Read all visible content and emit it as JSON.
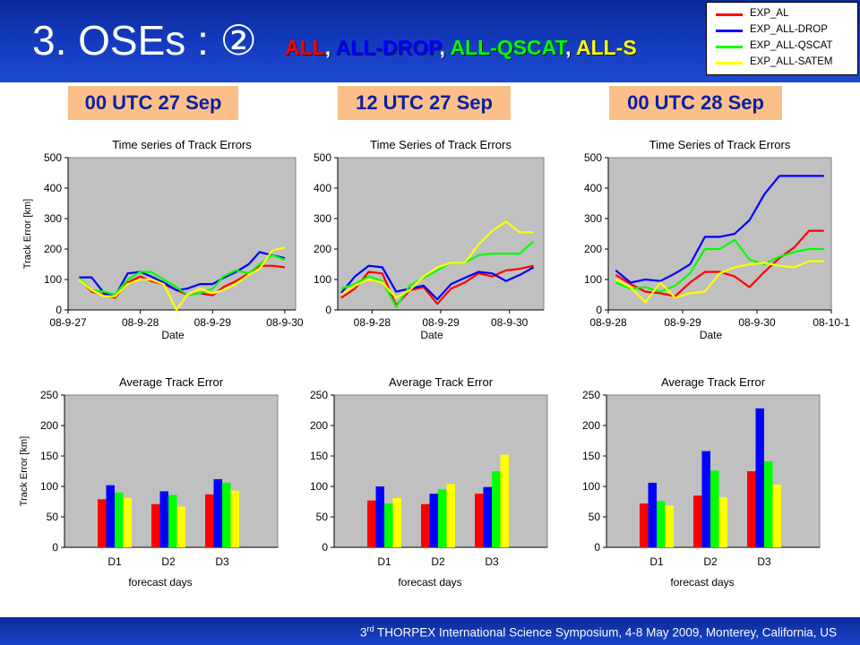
{
  "header": {
    "title_prefix": "3. OSEs : ② ",
    "experiments": [
      {
        "label": "ALL",
        "color": "#ff0000"
      },
      {
        "label": "ALL-DROP",
        "color": "#0000ff"
      },
      {
        "label": "ALL-QSCAT",
        "color": "#00ff00"
      },
      {
        "label": "ALL-S",
        "color": "#ffff00"
      }
    ]
  },
  "legend": [
    {
      "name": "EXP_AL",
      "color": "#ff0000"
    },
    {
      "name": "EXP_ALL-DROP",
      "color": "#0000ff"
    },
    {
      "name": "EXP_ALL-QSCAT",
      "color": "#00ff00"
    },
    {
      "name": "EXP_ALL-SATEM",
      "color": "#ffff00"
    }
  ],
  "time_labels": [
    "00 UTC 27 Sep",
    "12 UTC 27 Sep",
    "00 UTC 28 Sep"
  ],
  "footer": {
    "ordinal_num": "3",
    "ordinal_sup": "rd",
    "text": " THORPEX International Science Symposium, 4-8 May 2009, Monterey, California, US"
  },
  "chart_data": [
    {
      "type": "line",
      "title": "Time series of Track Errors",
      "xlabel": "Date",
      "ylabel": "Track Error [km]",
      "x_tick_labels": [
        "08-9-27",
        "08-9-28",
        "08-9-29",
        "08-9-30"
      ],
      "x_tick_positions": [
        0,
        4,
        8,
        12
      ],
      "xlim": [
        0,
        12.6
      ],
      "ylim": [
        0,
        500
      ],
      "yticks": [
        0,
        100,
        200,
        300,
        400,
        500
      ],
      "grid": false,
      "series": [
        {
          "name": "EXP_AL",
          "color": "#ff0000",
          "x": [
            0.6,
            1.3,
            2,
            2.6,
            3.3,
            4,
            4.6,
            5.3,
            6,
            6.6,
            7.3,
            8,
            8.6,
            9.3,
            10,
            10.6,
            11.3,
            12
          ],
          "values": [
            105,
            60,
            50,
            40,
            90,
            110,
            95,
            85,
            65,
            50,
            55,
            48,
            75,
            95,
            120,
            145,
            145,
            140
          ]
        },
        {
          "name": "EXP_ALL-DROP",
          "color": "#0000ff",
          "x": [
            0.6,
            1.3,
            2,
            2.6,
            3.3,
            4,
            4.6,
            5.3,
            6,
            6.6,
            7.3,
            8,
            8.6,
            9.3,
            10,
            10.6,
            11.3,
            12
          ],
          "values": [
            107,
            107,
            55,
            45,
            120,
            125,
            110,
            90,
            65,
            70,
            85,
            85,
            105,
            125,
            150,
            190,
            180,
            170
          ]
        },
        {
          "name": "EXP_ALL-QSCAT",
          "color": "#00ff00",
          "x": [
            0.6,
            1.3,
            2,
            2.6,
            3.3,
            4,
            4.6,
            5.3,
            6,
            6.6,
            7.3,
            8,
            8.6,
            9.3,
            10,
            10.6,
            11.3,
            12
          ],
          "values": [
            105,
            65,
            60,
            50,
            100,
            125,
            125,
            100,
            75,
            50,
            55,
            70,
            110,
            130,
            120,
            150,
            180,
            165
          ]
        },
        {
          "name": "EXP_ALL-SATEM",
          "color": "#ffff00",
          "x": [
            0.6,
            1.3,
            2,
            2.6,
            3.3,
            4,
            4.6,
            5.3,
            6,
            6.6,
            7.3,
            8,
            8.6,
            9.3,
            10,
            10.6,
            11.3,
            12
          ],
          "values": [
            100,
            65,
            45,
            45,
            85,
            100,
            100,
            85,
            0,
            50,
            70,
            55,
            65,
            85,
            115,
            135,
            195,
            205
          ]
        }
      ]
    },
    {
      "type": "line",
      "title": "Time Series of Track Errors",
      "xlabel": "Date",
      "ylabel": "",
      "x_tick_labels": [
        "08-9-28",
        "08-9-29",
        "08-9-30"
      ],
      "x_tick_positions": [
        2,
        6,
        10
      ],
      "xlim": [
        0,
        12
      ],
      "ylim": [
        0,
        500
      ],
      "yticks": [
        0,
        100,
        200,
        300,
        400,
        500
      ],
      "grid": false,
      "series": [
        {
          "name": "EXP_AL",
          "color": "#ff0000",
          "x": [
            0.2,
            1,
            1.8,
            2.6,
            3.4,
            4.2,
            5,
            5.8,
            6.6,
            7.4,
            8.2,
            9,
            9.8,
            10.6,
            11.4
          ],
          "values": [
            40,
            70,
            125,
            120,
            15,
            65,
            75,
            20,
            70,
            90,
            120,
            110,
            130,
            135,
            145
          ]
        },
        {
          "name": "EXP_ALL-DROP",
          "color": "#0000ff",
          "x": [
            0.2,
            1,
            1.8,
            2.6,
            3.4,
            4.2,
            5,
            5.8,
            6.6,
            7.4,
            8.2,
            9,
            9.8,
            10.6,
            11.4
          ],
          "values": [
            55,
            110,
            145,
            140,
            60,
            70,
            80,
            35,
            85,
            105,
            125,
            120,
            95,
            115,
            140
          ]
        },
        {
          "name": "EXP_ALL-QSCAT",
          "color": "#00ff00",
          "x": [
            0.2,
            1,
            1.8,
            2.6,
            3.4,
            4.2,
            5,
            5.8,
            6.6,
            7.4,
            8.2,
            9,
            9.8,
            10.6,
            11.4
          ],
          "values": [
            70,
            85,
            110,
            95,
            10,
            80,
            105,
            130,
            155,
            155,
            180,
            185,
            185,
            185,
            225
          ]
        },
        {
          "name": "EXP_ALL-SATEM",
          "color": "#ffff00",
          "x": [
            0.2,
            1,
            1.8,
            2.6,
            3.4,
            4.2,
            5,
            5.8,
            6.6,
            7.4,
            8.2,
            9,
            9.8,
            10.6,
            11.4
          ],
          "values": [
            50,
            80,
            100,
            90,
            40,
            65,
            110,
            140,
            155,
            155,
            215,
            260,
            290,
            255,
            255
          ]
        }
      ]
    },
    {
      "type": "line",
      "title": "Time Series of Track Errors",
      "xlabel": "Date",
      "ylabel": "",
      "x_tick_labels": [
        "08-9-28",
        "08-9-29",
        "08-9-30",
        "08-10-1"
      ],
      "x_tick_positions": [
        0,
        4,
        8,
        12
      ],
      "xlim": [
        0,
        12
      ],
      "ylim": [
        0,
        500
      ],
      "yticks": [
        0,
        100,
        200,
        300,
        400,
        500
      ],
      "grid": false,
      "series": [
        {
          "name": "EXP_AL",
          "color": "#ff0000",
          "x": [
            0.4,
            1.2,
            2,
            2.8,
            3.6,
            4.4,
            5.2,
            6,
            6.8,
            7.6,
            8.4,
            9.2,
            10,
            10.8,
            11.6
          ],
          "values": [
            115,
            85,
            60,
            55,
            45,
            90,
            125,
            125,
            110,
            75,
            125,
            170,
            205,
            260,
            260
          ]
        },
        {
          "name": "EXP_ALL-DROP",
          "color": "#0000ff",
          "x": [
            0.4,
            1.2,
            2,
            2.8,
            3.6,
            4.4,
            5.2,
            6,
            6.8,
            7.6,
            8.4,
            9.2,
            10,
            10.8,
            11.6
          ],
          "values": [
            130,
            90,
            100,
            95,
            120,
            150,
            240,
            240,
            250,
            295,
            380,
            440,
            440,
            440,
            440
          ]
        },
        {
          "name": "EXP_ALL-QSCAT",
          "color": "#00ff00",
          "x": [
            0.4,
            1.2,
            2,
            2.8,
            3.6,
            4.4,
            5.2,
            6,
            6.8,
            7.6,
            8.4,
            9.2,
            10,
            10.8,
            11.6
          ],
          "values": [
            90,
            70,
            75,
            60,
            80,
            120,
            200,
            200,
            230,
            165,
            150,
            175,
            190,
            200,
            200
          ]
        },
        {
          "name": "EXP_ALL-SATEM",
          "color": "#ffff00",
          "x": [
            0.4,
            1.2,
            2,
            2.8,
            3.6,
            4.4,
            5.2,
            6,
            6.8,
            7.6,
            8.4,
            9.2,
            10,
            10.8,
            11.6
          ],
          "values": [
            100,
            75,
            25,
            90,
            40,
            55,
            60,
            120,
            140,
            150,
            155,
            145,
            140,
            160,
            160
          ]
        }
      ]
    },
    {
      "type": "bar",
      "title": "Average Track Error",
      "xlabel": "forecast days",
      "ylabel": "Track Error [km]",
      "categories": [
        "D1",
        "D2",
        "D3"
      ],
      "ylim": [
        0,
        250
      ],
      "yticks": [
        0,
        50,
        100,
        150,
        200,
        250
      ],
      "grid": false,
      "series": [
        {
          "name": "EXP_AL",
          "color": "#ff0000",
          "values": [
            79,
            71,
            87
          ]
        },
        {
          "name": "EXP_ALL-DROP",
          "color": "#0000ff",
          "values": [
            102,
            92,
            112
          ]
        },
        {
          "name": "EXP_ALL-QSCAT",
          "color": "#00ff00",
          "values": [
            90,
            86,
            106
          ]
        },
        {
          "name": "EXP_ALL-SATEM",
          "color": "#ffff00",
          "values": [
            81,
            67,
            93
          ]
        }
      ]
    },
    {
      "type": "bar",
      "title": "Average Track Error",
      "xlabel": "forecast days",
      "ylabel": "",
      "categories": [
        "D1",
        "D2",
        "D3"
      ],
      "ylim": [
        0,
        250
      ],
      "yticks": [
        0,
        50,
        100,
        150,
        200,
        250
      ],
      "grid": false,
      "series": [
        {
          "name": "EXP_AL",
          "color": "#ff0000",
          "values": [
            77,
            71,
            88
          ]
        },
        {
          "name": "EXP_ALL-DROP",
          "color": "#0000ff",
          "values": [
            100,
            88,
            99
          ]
        },
        {
          "name": "EXP_ALL-QSCAT",
          "color": "#00ff00",
          "values": [
            72,
            95,
            125
          ]
        },
        {
          "name": "EXP_ALL-SATEM",
          "color": "#ffff00",
          "values": [
            81,
            104,
            152
          ]
        }
      ]
    },
    {
      "type": "bar",
      "title": "Average Track Error",
      "xlabel": "forecast days",
      "ylabel": "",
      "categories": [
        "D1",
        "D2",
        "D3"
      ],
      "ylim": [
        0,
        250
      ],
      "yticks": [
        0,
        50,
        100,
        150,
        200,
        250
      ],
      "grid": false,
      "series": [
        {
          "name": "EXP_AL",
          "color": "#ff0000",
          "values": [
            72,
            85,
            125
          ]
        },
        {
          "name": "EXP_ALL-DROP",
          "color": "#0000ff",
          "values": [
            106,
            158,
            228
          ]
        },
        {
          "name": "EXP_ALL-QSCAT",
          "color": "#00ff00",
          "values": [
            76,
            126,
            141
          ]
        },
        {
          "name": "EXP_ALL-SATEM",
          "color": "#ffff00",
          "values": [
            69,
            82,
            103
          ]
        }
      ]
    }
  ]
}
